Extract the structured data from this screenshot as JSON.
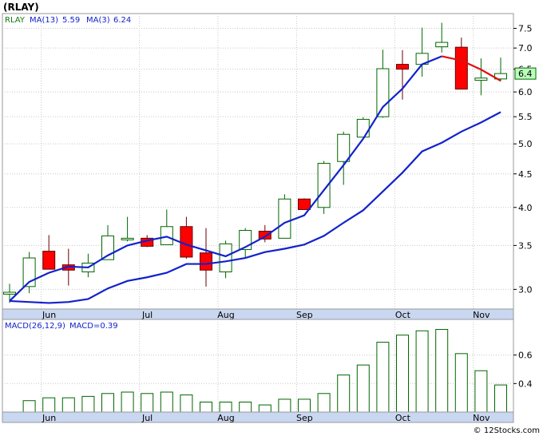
{
  "title": "(RLAY)",
  "watermark": "© 12Stocks.com",
  "chart_data": [
    {
      "type": "candlestick",
      "name": "price",
      "legend": {
        "symbol_label": "RLAY",
        "ma13_label": "MA(13)",
        "ma13_value": "5.59",
        "ma3_label": "MA(3)",
        "ma3_value": "6.24"
      },
      "last_price_label": "6.4",
      "y_ticks": [
        "3.0",
        "3.5",
        "4.0",
        "4.5",
        "5.0",
        "5.5",
        "6.0",
        "6.5",
        "7.0",
        "7.5"
      ],
      "y_tick_values": [
        3.0,
        3.5,
        4.0,
        4.5,
        5.0,
        5.5,
        6.0,
        6.5,
        7.0,
        7.5
      ],
      "ylim": [
        2.8,
        7.9
      ],
      "y_scale": "log",
      "months": [
        "Jun",
        "Jul",
        "Aug",
        "Sep",
        "Oct",
        "Nov"
      ],
      "month_week_index": [
        1,
        6,
        10,
        14,
        19,
        23
      ],
      "weeks": 26,
      "candles": [
        {
          "o": 2.95,
          "h": 3.06,
          "l": 2.86,
          "c": 2.97
        },
        {
          "o": 3.03,
          "h": 3.42,
          "l": 2.96,
          "c": 3.35
        },
        {
          "o": 3.43,
          "h": 3.63,
          "l": 3.22,
          "c": 3.22
        },
        {
          "o": 3.27,
          "h": 3.46,
          "l": 3.04,
          "c": 3.21
        },
        {
          "o": 3.19,
          "h": 3.4,
          "l": 3.13,
          "c": 3.29
        },
        {
          "o": 3.33,
          "h": 3.76,
          "l": 3.33,
          "c": 3.62
        },
        {
          "o": 3.57,
          "h": 3.87,
          "l": 3.55,
          "c": 3.59
        },
        {
          "o": 3.59,
          "h": 3.63,
          "l": 3.48,
          "c": 3.49
        },
        {
          "o": 3.51,
          "h": 3.97,
          "l": 3.51,
          "c": 3.74
        },
        {
          "o": 3.74,
          "h": 3.87,
          "l": 3.34,
          "c": 3.36
        },
        {
          "o": 3.41,
          "h": 3.72,
          "l": 3.03,
          "c": 3.21
        },
        {
          "o": 3.19,
          "h": 3.56,
          "l": 3.12,
          "c": 3.52
        },
        {
          "o": 3.45,
          "h": 3.72,
          "l": 3.34,
          "c": 3.69
        },
        {
          "o": 3.68,
          "h": 3.76,
          "l": 3.54,
          "c": 3.58
        },
        {
          "o": 3.59,
          "h": 4.19,
          "l": 3.59,
          "c": 4.12
        },
        {
          "o": 4.12,
          "h": 4.13,
          "l": 3.99,
          "c": 3.97
        },
        {
          "o": 4.0,
          "h": 4.71,
          "l": 3.91,
          "c": 4.67
        },
        {
          "o": 4.7,
          "h": 5.22,
          "l": 4.33,
          "c": 5.17
        },
        {
          "o": 5.12,
          "h": 5.49,
          "l": 5.09,
          "c": 5.45
        },
        {
          "o": 5.5,
          "h": 6.96,
          "l": 5.48,
          "c": 6.51
        },
        {
          "o": 6.61,
          "h": 6.95,
          "l": 5.84,
          "c": 6.5
        },
        {
          "o": 6.61,
          "h": 7.52,
          "l": 6.33,
          "c": 6.87
        },
        {
          "o": 7.03,
          "h": 7.65,
          "l": 6.89,
          "c": 7.14
        },
        {
          "o": 7.02,
          "h": 7.26,
          "l": 6.06,
          "c": 6.06
        },
        {
          "o": 6.25,
          "h": 6.75,
          "l": 5.93,
          "c": 6.3
        },
        {
          "o": 6.28,
          "h": 6.77,
          "l": 6.23,
          "c": 6.4
        }
      ],
      "ma13": [
        {
          "i": 0,
          "v": 2.88
        },
        {
          "i": 2,
          "v": 2.86
        },
        {
          "i": 3,
          "v": 2.87
        },
        {
          "i": 4,
          "v": 2.9
        },
        {
          "i": 5,
          "v": 3.01
        },
        {
          "i": 6,
          "v": 3.09
        },
        {
          "i": 7,
          "v": 3.13
        },
        {
          "i": 8,
          "v": 3.18
        },
        {
          "i": 9,
          "v": 3.28
        },
        {
          "i": 10,
          "v": 3.28
        },
        {
          "i": 11,
          "v": 3.31
        },
        {
          "i": 12,
          "v": 3.35
        },
        {
          "i": 13,
          "v": 3.42
        },
        {
          "i": 14,
          "v": 3.46
        },
        {
          "i": 15,
          "v": 3.51
        },
        {
          "i": 16,
          "v": 3.62
        },
        {
          "i": 17,
          "v": 3.79
        },
        {
          "i": 18,
          "v": 3.96
        },
        {
          "i": 19,
          "v": 4.23
        },
        {
          "i": 20,
          "v": 4.52
        },
        {
          "i": 21,
          "v": 4.87
        },
        {
          "i": 22,
          "v": 5.02
        },
        {
          "i": 23,
          "v": 5.22
        },
        {
          "i": 24,
          "v": 5.39
        },
        {
          "i": 25,
          "v": 5.59
        }
      ],
      "ma3": [
        {
          "i": 0,
          "v": 2.88
        },
        {
          "i": 1,
          "v": 3.08
        },
        {
          "i": 2,
          "v": 3.18
        },
        {
          "i": 3,
          "v": 3.25
        },
        {
          "i": 4,
          "v": 3.24
        },
        {
          "i": 5,
          "v": 3.38
        },
        {
          "i": 6,
          "v": 3.5
        },
        {
          "i": 7,
          "v": 3.56
        },
        {
          "i": 8,
          "v": 3.61
        },
        {
          "i": 9,
          "v": 3.51
        },
        {
          "i": 10,
          "v": 3.44
        },
        {
          "i": 11,
          "v": 3.37
        },
        {
          "i": 12,
          "v": 3.48
        },
        {
          "i": 13,
          "v": 3.61
        },
        {
          "i": 14,
          "v": 3.79
        },
        {
          "i": 15,
          "v": 3.89
        },
        {
          "i": 16,
          "v": 4.25
        },
        {
          "i": 17,
          "v": 4.64
        },
        {
          "i": 18,
          "v": 5.09
        },
        {
          "i": 19,
          "v": 5.69
        },
        {
          "i": 20,
          "v": 6.07
        },
        {
          "i": 21,
          "v": 6.61
        },
        {
          "i": 22,
          "v": 6.8
        },
        {
          "i": 23,
          "v": 6.7
        },
        {
          "i": 24,
          "v": 6.49
        },
        {
          "i": 25,
          "v": 6.24
        }
      ],
      "ma3_red_from_index": 22,
      "colors": {
        "up_fill": "#ffffff",
        "up_stroke": "#006600",
        "down_fill": "#ff0000",
        "down_stroke": "#660000",
        "ma13": "#1122cc",
        "ma3": "#1122cc",
        "ma3_recent": "#dd1111",
        "last_price_bg": "#bbffbb",
        "legend_symbol": "#117711",
        "grid": "#c8c8c8"
      }
    },
    {
      "type": "bar",
      "name": "macd",
      "legend": {
        "params_label": "MACD(26,12,9)",
        "value_label": "MACD=0.39"
      },
      "y_ticks": [
        "0.4",
        "0.6"
      ],
      "y_tick_values": [
        0.4,
        0.6
      ],
      "ylim": [
        0.2,
        0.85
      ],
      "values": [
        0.28,
        0.3,
        0.3,
        0.31,
        0.33,
        0.34,
        0.33,
        0.34,
        0.32,
        0.27,
        0.27,
        0.27,
        0.25,
        0.29,
        0.29,
        0.33,
        0.46,
        0.53,
        0.69,
        0.74,
        0.77,
        0.78,
        0.61,
        0.49,
        0.39
      ],
      "first_index": 1,
      "colors": {
        "bar_fill": "#ffffff",
        "bar_stroke": "#006600",
        "legend": "#1122cc"
      }
    }
  ]
}
